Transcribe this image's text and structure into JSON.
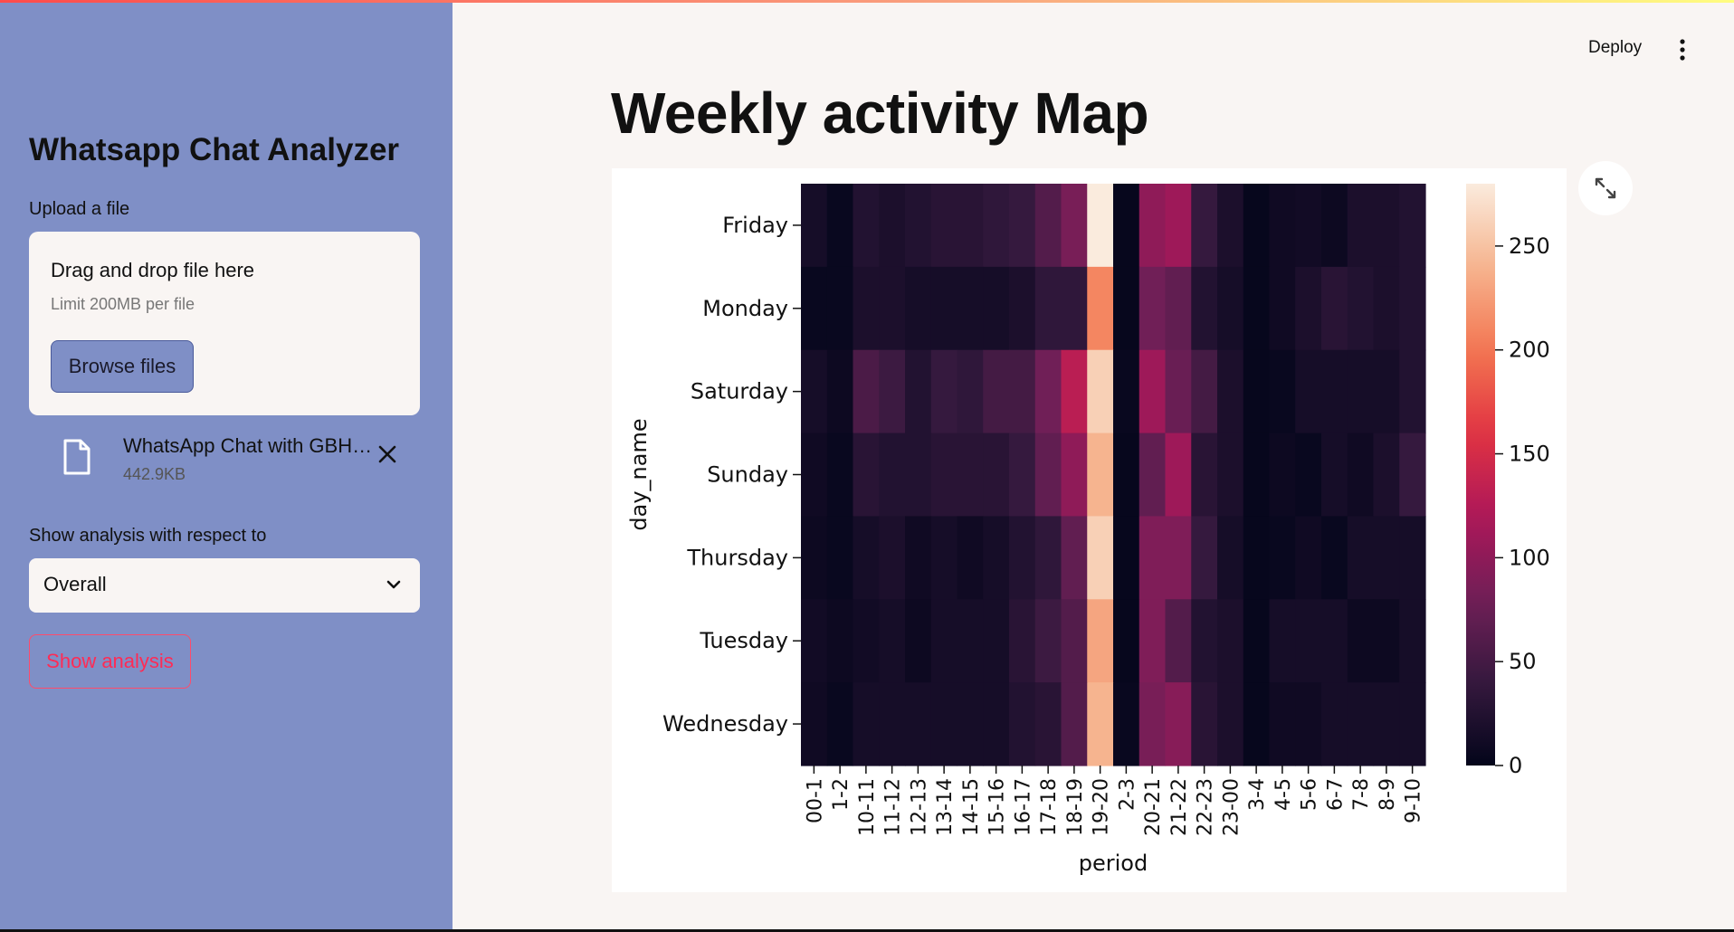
{
  "app": {
    "title": "Whatsapp Chat Analyzer",
    "deploy_label": "Deploy",
    "accent": "#ff4b4b",
    "sidebar_color": "#7f8fc6"
  },
  "sidebar": {
    "upload_label": "Upload a file",
    "dropzone_title": "Drag and drop file here",
    "dropzone_limit": "Limit 200MB per file",
    "browse_label": "Browse files",
    "file": {
      "name": "WhatsApp Chat with GBH…",
      "size": "442.9KB"
    },
    "analysis_label": "Show analysis with respect to",
    "select_value": "Overall",
    "show_button": "Show analysis"
  },
  "main": {
    "title": "Weekly activity Map"
  },
  "chart_data": {
    "type": "heatmap",
    "title": "",
    "xlabel": "period",
    "ylabel": "day_name",
    "y": [
      "Friday",
      "Monday",
      "Saturday",
      "Sunday",
      "Thursday",
      "Tuesday",
      "Wednesday"
    ],
    "x": [
      "00-1",
      "1-2",
      "10-11",
      "11-12",
      "12-13",
      "13-14",
      "14-15",
      "15-16",
      "16-17",
      "17-18",
      "18-19",
      "19-20",
      "2-3",
      "20-21",
      "21-22",
      "22-23",
      "23-00",
      "3-4",
      "4-5",
      "5-6",
      "6-7",
      "7-8",
      "8-9",
      "9-10"
    ],
    "values": [
      [
        15,
        5,
        25,
        20,
        25,
        30,
        30,
        35,
        40,
        60,
        85,
        280,
        3,
        100,
        110,
        40,
        20,
        3,
        10,
        12,
        8,
        20,
        20,
        25
      ],
      [
        5,
        5,
        20,
        20,
        15,
        15,
        15,
        15,
        20,
        35,
        35,
        210,
        3,
        80,
        70,
        25,
        15,
        3,
        10,
        20,
        30,
        25,
        20,
        25
      ],
      [
        15,
        8,
        55,
        45,
        25,
        40,
        35,
        50,
        50,
        80,
        130,
        260,
        5,
        110,
        75,
        50,
        20,
        3,
        5,
        15,
        15,
        15,
        15,
        25
      ],
      [
        10,
        5,
        30,
        25,
        25,
        30,
        30,
        30,
        40,
        70,
        100,
        240,
        3,
        70,
        110,
        30,
        20,
        3,
        8,
        5,
        15,
        10,
        20,
        40
      ],
      [
        8,
        5,
        15,
        20,
        10,
        15,
        10,
        15,
        25,
        35,
        70,
        260,
        3,
        90,
        90,
        40,
        15,
        3,
        5,
        10,
        5,
        15,
        15,
        15
      ],
      [
        12,
        8,
        12,
        15,
        8,
        15,
        15,
        15,
        30,
        45,
        60,
        230,
        3,
        90,
        60,
        25,
        20,
        3,
        15,
        15,
        15,
        8,
        8,
        15
      ],
      [
        10,
        5,
        15,
        15,
        15,
        15,
        15,
        15,
        25,
        30,
        60,
        240,
        5,
        85,
        95,
        30,
        20,
        3,
        10,
        10,
        15,
        15,
        15,
        15
      ]
    ],
    "vmin": 0,
    "vmax": 280,
    "colorbar_ticks": [
      0,
      50,
      100,
      150,
      200,
      250
    ],
    "colormap": "rocket",
    "colormap_stops": [
      "#03051a",
      "#35193e",
      "#701f57",
      "#ad1759",
      "#e13342",
      "#f37651",
      "#f6b48f",
      "#faebdd"
    ]
  }
}
